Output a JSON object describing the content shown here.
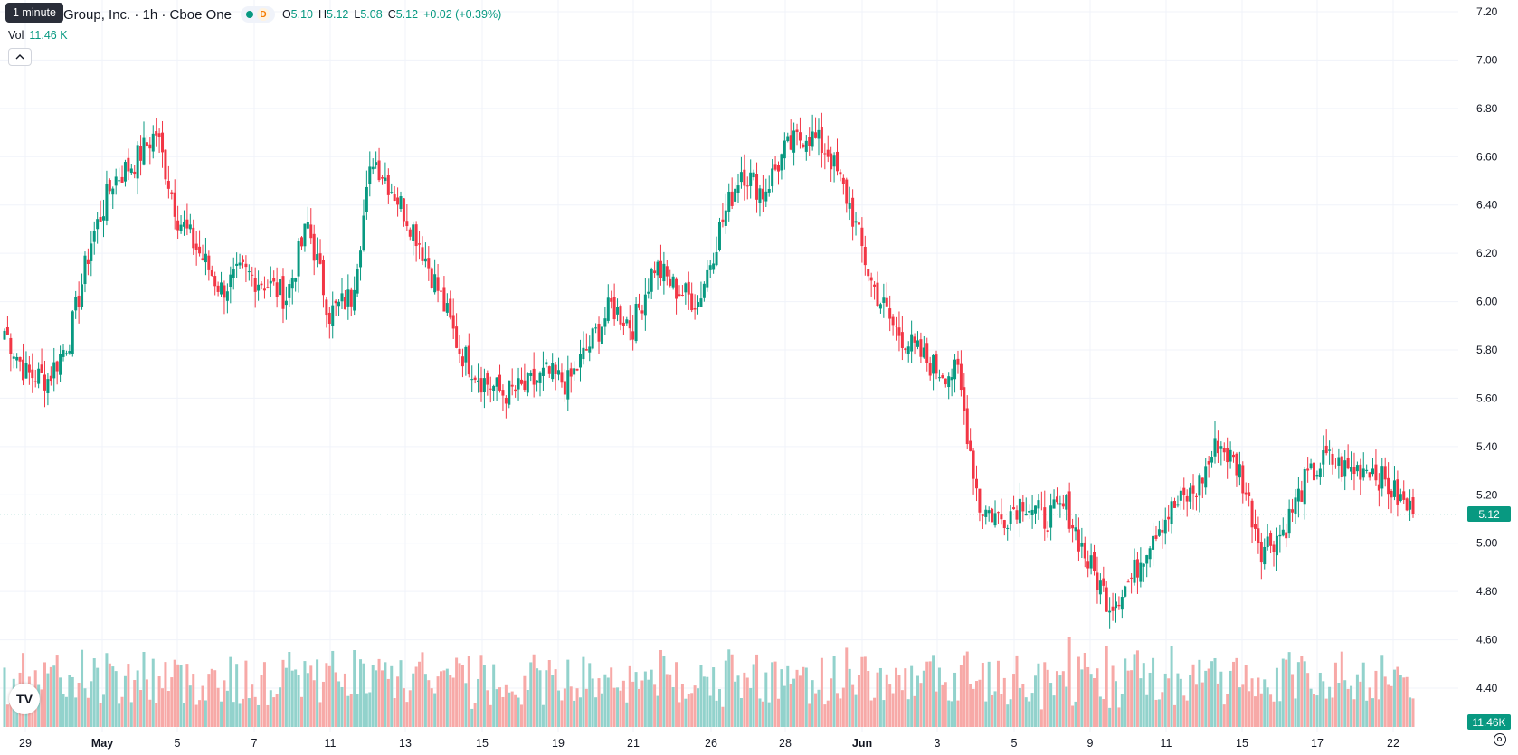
{
  "header": {
    "title": "Group, Inc. · 1h · Cboe One",
    "status_letter": "D",
    "open_label": "O",
    "open_value": "5.10",
    "high_label": "H",
    "high_value": "5.12",
    "low_label": "L",
    "low_value": "5.08",
    "close_label": "C",
    "close_value": "5.12",
    "change": "+0.02 (+0.39%)"
  },
  "volume_legend": {
    "label": "Vol",
    "value": "11.46 K"
  },
  "tooltip": "1 minute",
  "logo_text": "TV",
  "last_price_tag": "5.12",
  "volume_tag": "11.46K",
  "colors": {
    "up": "#089981",
    "down": "#f23645",
    "up_volume": "#92d2cc",
    "down_volume": "#f7a9a7",
    "grid": "#f0f3fa",
    "axis_text": "#131722"
  },
  "chart_data": {
    "type": "candlestick",
    "interval": "1h",
    "y_axis": {
      "ticks": [
        "7.20",
        "7.00",
        "6.80",
        "6.60",
        "6.40",
        "6.20",
        "6.00",
        "5.80",
        "5.60",
        "5.40",
        "5.20",
        "5.00",
        "4.80",
        "4.60",
        "4.40"
      ],
      "range": [
        4.28,
        7.24
      ],
      "side": "right"
    },
    "x_axis": {
      "ticks": [
        {
          "label": "29",
          "bold": false
        },
        {
          "label": "May",
          "bold": true
        },
        {
          "label": "5",
          "bold": false
        },
        {
          "label": "7",
          "bold": false
        },
        {
          "label": "11",
          "bold": false
        },
        {
          "label": "13",
          "bold": false
        },
        {
          "label": "15",
          "bold": false
        },
        {
          "label": "19",
          "bold": false
        },
        {
          "label": "21",
          "bold": false
        },
        {
          "label": "26",
          "bold": false
        },
        {
          "label": "28",
          "bold": false
        },
        {
          "label": "Jun",
          "bold": true
        },
        {
          "label": "3",
          "bold": false
        },
        {
          "label": "5",
          "bold": false
        },
        {
          "label": "9",
          "bold": false
        },
        {
          "label": "11",
          "bold": false
        },
        {
          "label": "15",
          "bold": false
        },
        {
          "label": "17",
          "bold": false
        },
        {
          "label": "22",
          "bold": false
        }
      ]
    },
    "last_price": 5.12,
    "daily_path": [
      5.88,
      5.7,
      5.68,
      5.85,
      6.25,
      6.5,
      6.58,
      6.7,
      6.35,
      6.2,
      6.05,
      6.12,
      6.08,
      6.02,
      6.32,
      5.95,
      6.02,
      6.6,
      6.45,
      6.28,
      6.05,
      5.8,
      5.68,
      5.62,
      5.64,
      5.7,
      5.66,
      5.82,
      5.98,
      5.9,
      6.15,
      6.05,
      6.0,
      6.3,
      6.55,
      6.45,
      6.62,
      6.7,
      6.62,
      6.4,
      6.08,
      5.9,
      5.8,
      5.72,
      5.7,
      5.15,
      5.1,
      5.18,
      5.1,
      5.15,
      4.92,
      4.75,
      4.85,
      5.05,
      5.15,
      5.22,
      5.42,
      5.3,
      4.98,
      5.05,
      5.25,
      5.35,
      5.3,
      5.32,
      5.22,
      5.12
    ],
    "candles_per_day": 7
  }
}
